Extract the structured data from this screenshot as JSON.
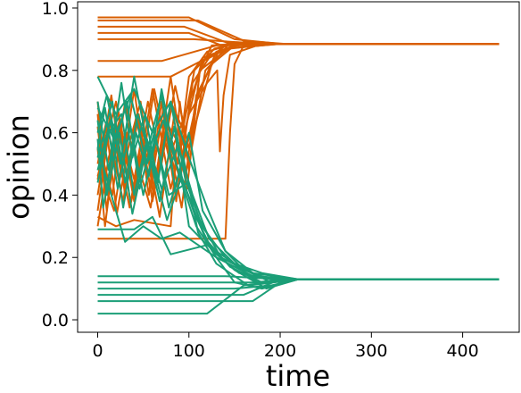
{
  "chart_data": {
    "type": "line",
    "title": "",
    "xlabel": "time",
    "ylabel": "opinion",
    "xlim": [
      -22,
      462
    ],
    "ylim": [
      -0.04,
      1.02
    ],
    "xticks": [
      "0",
      "100",
      "200",
      "300",
      "400"
    ],
    "yticks": [
      "0.0",
      "0.2",
      "0.4",
      "0.6",
      "0.8",
      "1.0"
    ],
    "grid": false,
    "legend": "none",
    "colors": {
      "high_group": "#d95f02",
      "low_group": "#1b9e77"
    },
    "series": [
      {
        "group": "high_group",
        "x": [
          0,
          100,
          150,
          200,
          440
        ],
        "y": [
          0.97,
          0.97,
          0.9,
          0.885,
          0.885
        ]
      },
      {
        "group": "high_group",
        "x": [
          0,
          110,
          160,
          205,
          440
        ],
        "y": [
          0.96,
          0.96,
          0.895,
          0.885,
          0.885
        ]
      },
      {
        "group": "high_group",
        "x": [
          0,
          95,
          150,
          200,
          440
        ],
        "y": [
          0.94,
          0.94,
          0.88,
          0.885,
          0.885
        ]
      },
      {
        "group": "high_group",
        "x": [
          0,
          100,
          145,
          195,
          440
        ],
        "y": [
          0.92,
          0.92,
          0.87,
          0.885,
          0.885
        ]
      },
      {
        "group": "high_group",
        "x": [
          0,
          105,
          155,
          200,
          440
        ],
        "y": [
          0.9,
          0.9,
          0.89,
          0.885,
          0.885
        ]
      },
      {
        "group": "high_group",
        "x": [
          0,
          70,
          130,
          190,
          440
        ],
        "y": [
          0.83,
          0.83,
          0.88,
          0.885,
          0.885
        ]
      },
      {
        "group": "high_group",
        "x": [
          0,
          80,
          140,
          200,
          440
        ],
        "y": [
          0.78,
          0.78,
          0.87,
          0.885,
          0.885
        ]
      },
      {
        "group": "high_group",
        "x": [
          0,
          10,
          25,
          40,
          55,
          70,
          85,
          100,
          125,
          150,
          200,
          440
        ],
        "y": [
          0.7,
          0.4,
          0.62,
          0.45,
          0.7,
          0.5,
          0.75,
          0.55,
          0.82,
          0.88,
          0.885,
          0.885
        ]
      },
      {
        "group": "high_group",
        "x": [
          0,
          12,
          28,
          42,
          58,
          72,
          88,
          100,
          120,
          155,
          200,
          440
        ],
        "y": [
          0.35,
          0.6,
          0.38,
          0.65,
          0.42,
          0.68,
          0.5,
          0.78,
          0.86,
          0.89,
          0.885,
          0.885
        ]
      },
      {
        "group": "high_group",
        "x": [
          0,
          8,
          20,
          35,
          50,
          65,
          80,
          95,
          115,
          150,
          200,
          440
        ],
        "y": [
          0.55,
          0.3,
          0.58,
          0.36,
          0.6,
          0.44,
          0.7,
          0.6,
          0.84,
          0.88,
          0.885,
          0.885
        ]
      },
      {
        "group": "high_group",
        "x": [
          0,
          15,
          30,
          45,
          60,
          75,
          90,
          110,
          130,
          160,
          200,
          440
        ],
        "y": [
          0.45,
          0.72,
          0.4,
          0.66,
          0.38,
          0.62,
          0.45,
          0.72,
          0.86,
          0.885,
          0.885,
          0.885
        ]
      },
      {
        "group": "high_group",
        "x": [
          0,
          10,
          22,
          38,
          52,
          68,
          84,
          100,
          118,
          140,
          200,
          440
        ],
        "y": [
          0.62,
          0.35,
          0.68,
          0.42,
          0.58,
          0.33,
          0.66,
          0.5,
          0.8,
          0.87,
          0.885,
          0.885
        ]
      },
      {
        "group": "high_group",
        "x": [
          0,
          14,
          26,
          40,
          56,
          70,
          86,
          104,
          122,
          145,
          200,
          440
        ],
        "y": [
          0.4,
          0.66,
          0.46,
          0.74,
          0.4,
          0.7,
          0.38,
          0.76,
          0.84,
          0.89,
          0.885,
          0.885
        ]
      },
      {
        "group": "high_group",
        "x": [
          0,
          6,
          18,
          32,
          48,
          62,
          78,
          96,
          116,
          148,
          200,
          440
        ],
        "y": [
          0.66,
          0.45,
          0.35,
          0.6,
          0.48,
          0.74,
          0.52,
          0.66,
          0.83,
          0.88,
          0.885,
          0.885
        ]
      },
      {
        "group": "high_group",
        "x": [
          0,
          12,
          24,
          36,
          50,
          64,
          80,
          98,
          112,
          150,
          200,
          440
        ],
        "y": [
          0.3,
          0.52,
          0.64,
          0.37,
          0.55,
          0.46,
          0.78,
          0.42,
          0.8,
          0.885,
          0.885,
          0.885
        ]
      },
      {
        "group": "high_group",
        "x": [
          0,
          16,
          30,
          44,
          58,
          74,
          90,
          106,
          128,
          152,
          200,
          440
        ],
        "y": [
          0.58,
          0.4,
          0.7,
          0.5,
          0.36,
          0.64,
          0.56,
          0.8,
          0.87,
          0.89,
          0.885,
          0.885
        ]
      },
      {
        "group": "high_group",
        "x": [
          0,
          9,
          21,
          34,
          47,
          61,
          76,
          92,
          108,
          136,
          200,
          440
        ],
        "y": [
          0.5,
          0.63,
          0.34,
          0.56,
          0.7,
          0.4,
          0.6,
          0.36,
          0.72,
          0.88,
          0.885,
          0.885
        ]
      },
      {
        "group": "high_group",
        "x": [
          0,
          20,
          40,
          60,
          80,
          100,
          120,
          131,
          134,
          138,
          145,
          180,
          440
        ],
        "y": [
          0.46,
          0.7,
          0.38,
          0.74,
          0.42,
          0.66,
          0.76,
          0.8,
          0.54,
          0.72,
          0.85,
          0.885,
          0.885
        ]
      },
      {
        "group": "high_group",
        "x": [
          0,
          10,
          20,
          30,
          140,
          145,
          150,
          160,
          200,
          440
        ],
        "y": [
          0.26,
          0.26,
          0.26,
          0.26,
          0.26,
          0.6,
          0.82,
          0.88,
          0.885,
          0.885
        ]
      },
      {
        "group": "high_group",
        "x": [
          0,
          20,
          40,
          60,
          80,
          90,
          100,
          112,
          125,
          150,
          200,
          440
        ],
        "y": [
          0.33,
          0.3,
          0.32,
          0.31,
          0.3,
          0.7,
          0.48,
          0.8,
          0.88,
          0.885,
          0.885,
          0.885
        ]
      },
      {
        "group": "low_group",
        "x": [
          0,
          10,
          25,
          40,
          55,
          70,
          85,
          100,
          115,
          140,
          170,
          220,
          440
        ],
        "y": [
          0.6,
          0.72,
          0.5,
          0.78,
          0.55,
          0.72,
          0.42,
          0.6,
          0.35,
          0.22,
          0.15,
          0.13,
          0.13
        ]
      },
      {
        "group": "low_group",
        "x": [
          0,
          12,
          26,
          38,
          52,
          66,
          80,
          96,
          112,
          135,
          175,
          220,
          440
        ],
        "y": [
          0.7,
          0.48,
          0.76,
          0.52,
          0.66,
          0.44,
          0.7,
          0.45,
          0.32,
          0.2,
          0.14,
          0.13,
          0.13
        ]
      },
      {
        "group": "low_group",
        "x": [
          0,
          8,
          22,
          36,
          50,
          64,
          78,
          94,
          110,
          130,
          165,
          220,
          440
        ],
        "y": [
          0.55,
          0.68,
          0.42,
          0.62,
          0.4,
          0.58,
          0.36,
          0.52,
          0.28,
          0.18,
          0.11,
          0.13,
          0.13
        ]
      },
      {
        "group": "low_group",
        "x": [
          0,
          14,
          28,
          42,
          56,
          70,
          86,
          102,
          118,
          145,
          180,
          220,
          440
        ],
        "y": [
          0.48,
          0.64,
          0.36,
          0.6,
          0.46,
          0.74,
          0.5,
          0.38,
          0.26,
          0.17,
          0.12,
          0.13,
          0.13
        ]
      },
      {
        "group": "low_group",
        "x": [
          0,
          10,
          24,
          38,
          54,
          68,
          84,
          100,
          120,
          150,
          185,
          220,
          440
        ],
        "y": [
          0.64,
          0.4,
          0.6,
          0.34,
          0.56,
          0.38,
          0.62,
          0.3,
          0.24,
          0.16,
          0.1,
          0.13,
          0.13
        ]
      },
      {
        "group": "low_group",
        "x": [
          0,
          16,
          30,
          44,
          60,
          76,
          92,
          106,
          126,
          155,
          190,
          220,
          440
        ],
        "y": [
          0.52,
          0.7,
          0.44,
          0.66,
          0.5,
          0.32,
          0.46,
          0.34,
          0.22,
          0.15,
          0.13,
          0.13,
          0.13
        ]
      },
      {
        "group": "low_group",
        "x": [
          0,
          6,
          18,
          32,
          46,
          62,
          78,
          98,
          114,
          140,
          175,
          220,
          440
        ],
        "y": [
          0.58,
          0.36,
          0.56,
          0.7,
          0.42,
          0.6,
          0.4,
          0.44,
          0.3,
          0.2,
          0.12,
          0.13,
          0.13
        ]
      },
      {
        "group": "low_group",
        "x": [
          0,
          12,
          26,
          40,
          54,
          70,
          88,
          104,
          122,
          150,
          180,
          220,
          440
        ],
        "y": [
          0.44,
          0.6,
          0.66,
          0.4,
          0.58,
          0.42,
          0.56,
          0.4,
          0.26,
          0.18,
          0.15,
          0.13,
          0.13
        ]
      },
      {
        "group": "low_group",
        "x": [
          0,
          20,
          40,
          60,
          80,
          100,
          120,
          140,
          160,
          190,
          220,
          440
        ],
        "y": [
          0.78,
          0.66,
          0.74,
          0.6,
          0.7,
          0.52,
          0.36,
          0.22,
          0.16,
          0.13,
          0.13,
          0.13
        ]
      },
      {
        "group": "low_group",
        "x": [
          0,
          18,
          36,
          54,
          72,
          90,
          108,
          130,
          150,
          180,
          220,
          440
        ],
        "y": [
          0.68,
          0.58,
          0.72,
          0.5,
          0.64,
          0.46,
          0.3,
          0.2,
          0.12,
          0.1,
          0.13,
          0.13
        ]
      },
      {
        "group": "low_group",
        "x": [
          0,
          100,
          140,
          200,
          440
        ],
        "y": [
          0.14,
          0.14,
          0.14,
          0.13,
          0.13
        ]
      },
      {
        "group": "low_group",
        "x": [
          0,
          130,
          170,
          210,
          440
        ],
        "y": [
          0.12,
          0.12,
          0.12,
          0.13,
          0.13
        ]
      },
      {
        "group": "low_group",
        "x": [
          0,
          150,
          190,
          220,
          440
        ],
        "y": [
          0.1,
          0.1,
          0.11,
          0.13,
          0.13
        ]
      },
      {
        "group": "low_group",
        "x": [
          0,
          160,
          200,
          440
        ],
        "y": [
          0.08,
          0.08,
          0.13,
          0.13
        ]
      },
      {
        "group": "low_group",
        "x": [
          0,
          170,
          205,
          440
        ],
        "y": [
          0.06,
          0.06,
          0.13,
          0.13
        ]
      },
      {
        "group": "low_group",
        "x": [
          0,
          120,
          160,
          210,
          440
        ],
        "y": [
          0.02,
          0.02,
          0.11,
          0.13,
          0.13
        ]
      },
      {
        "group": "low_group",
        "x": [
          0,
          40,
          60,
          80,
          120,
          150,
          190,
          220,
          440
        ],
        "y": [
          0.29,
          0.29,
          0.33,
          0.21,
          0.24,
          0.18,
          0.12,
          0.13,
          0.13
        ]
      },
      {
        "group": "low_group",
        "x": [
          0,
          30,
          50,
          70,
          90,
          130,
          170,
          210,
          440
        ],
        "y": [
          0.55,
          0.25,
          0.3,
          0.26,
          0.28,
          0.2,
          0.14,
          0.13,
          0.13
        ]
      }
    ]
  }
}
